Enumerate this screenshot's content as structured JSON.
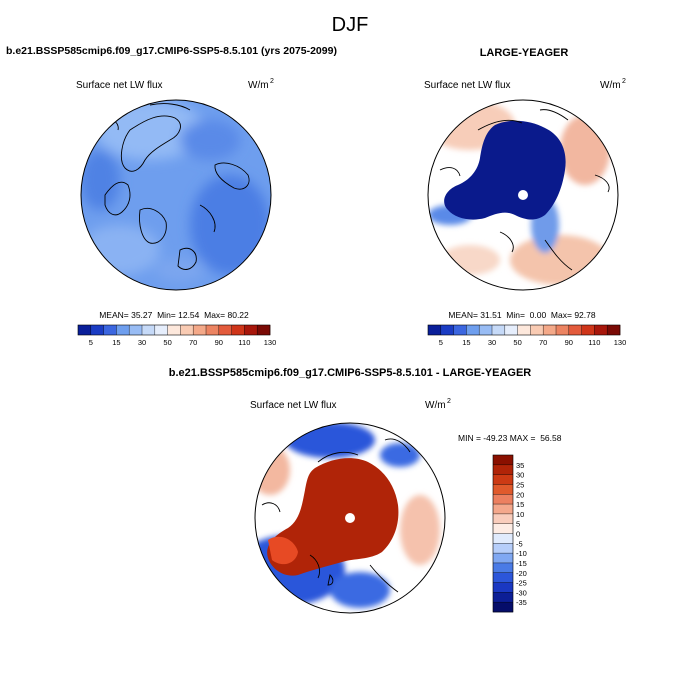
{
  "page": {
    "season": "DJF",
    "left_title": "b.e21.BSSP585cmip6.f09_g17.CMIP6-SSP5-8.5.101 (yrs 2075-2099)",
    "right_title": "LARGE-YEAGER",
    "diff_title": "b.e21.BSSP585cmip6.f09_g17.CMIP6-SSP5-8.5.101 - LARGE-YEAGER"
  },
  "chart_data": [
    {
      "type": "heatmap",
      "projection": "polar stereographic (north)",
      "variable": "Surface net LW flux",
      "units": "W/m2",
      "stats": {
        "mean": "35.27",
        "min": "12.54",
        "max": "80.22"
      },
      "stats_text": "MEAN= 35.27  Min= 12.54  Max= 80.22",
      "levels": [
        5,
        10,
        15,
        20,
        30,
        40,
        50,
        60,
        70,
        80,
        90,
        100,
        110,
        120,
        130
      ],
      "colorbar_ticks": [
        "5",
        "15",
        "30",
        "50",
        "70",
        "90",
        "110",
        "130"
      ],
      "colorbar_orientation": "horizontal",
      "field_description": "mostly 30-50 W/m2 over ocean and land"
    },
    {
      "type": "heatmap",
      "projection": "polar stereographic (north)",
      "variable": "Surface net LW flux",
      "units": "W/m2",
      "stats": {
        "mean": "31.51",
        "min": "0.00",
        "max": "92.78"
      },
      "stats_text": "MEAN= 31.51  Min=  0.00  Max= 92.78",
      "levels": [
        5,
        10,
        15,
        20,
        30,
        40,
        50,
        60,
        70,
        80,
        90,
        100,
        110,
        120,
        130
      ],
      "colorbar_ticks": [
        "5",
        "15",
        "30",
        "50",
        "70",
        "90",
        "110",
        "130"
      ],
      "colorbar_orientation": "horizontal",
      "field_description": "near 0 (dark blue) over sea ice, 60-80 over open ocean"
    },
    {
      "type": "heatmap",
      "projection": "polar stereographic (north)",
      "variable": "Surface net LW flux",
      "units": "W/m2",
      "stats": {
        "min": "-49.23",
        "max": "56.58"
      },
      "stats_text": "MIN = -49.23 MAX =  56.58",
      "levels": [
        -35,
        -30,
        -25,
        -20,
        -15,
        -10,
        -5,
        0,
        5,
        10,
        15,
        20,
        25,
        30,
        35
      ],
      "colorbar_ticks": [
        "35",
        "30",
        "25",
        "20",
        "15",
        "10",
        "5",
        "0",
        "-5",
        "-10",
        "-15",
        "-20",
        "-25",
        "-30",
        "-35"
      ],
      "colorbar_orientation": "vertical",
      "field_description": "large positive (dark red) over Arctic Ocean, negative (blue) over North Atlantic and Pacific"
    }
  ]
}
